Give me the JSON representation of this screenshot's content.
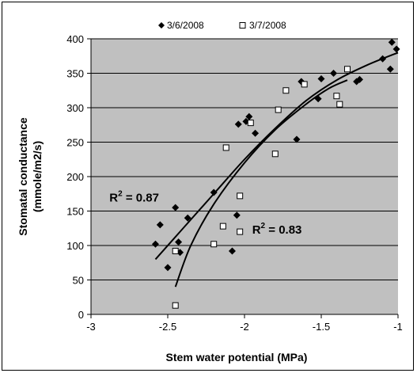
{
  "chart_data": {
    "type": "scatter",
    "xlabel": "Stem water potential (MPa)",
    "ylabel": "Stomatal conductance (mmole/m2/s)",
    "ylabel_lines": [
      "Stomatal conductance",
      "(mmole/m2/s)"
    ],
    "xlim": [
      -3,
      -1
    ],
    "ylim": [
      0,
      400
    ],
    "xticks": [
      "-3",
      "-2.5",
      "-2",
      "-1.5",
      "-1"
    ],
    "yticks": [
      "0",
      "50",
      "100",
      "150",
      "200",
      "250",
      "300",
      "350",
      "400"
    ],
    "grid": "horizontal",
    "plot_background": "#c0c0c0",
    "legend_position": "top",
    "series": [
      {
        "name": "3/6/2008",
        "marker": "diamond-filled",
        "color": "#000000",
        "points": [
          [
            -2.58,
            102
          ],
          [
            -2.55,
            130
          ],
          [
            -2.5,
            68
          ],
          [
            -2.45,
            155
          ],
          [
            -2.43,
            105
          ],
          [
            -2.42,
            90
          ],
          [
            -2.37,
            140
          ],
          [
            -2.2,
            177
          ],
          [
            -2.08,
            92
          ],
          [
            -2.05,
            144
          ],
          [
            -2.04,
            276
          ],
          [
            -1.99,
            280
          ],
          [
            -1.97,
            287
          ],
          [
            -1.93,
            263
          ],
          [
            -1.66,
            254
          ],
          [
            -1.63,
            338
          ],
          [
            -1.52,
            313
          ],
          [
            -1.5,
            342
          ],
          [
            -1.42,
            350
          ],
          [
            -1.27,
            338
          ],
          [
            -1.25,
            341
          ],
          [
            -1.1,
            371
          ],
          [
            -1.05,
            356
          ],
          [
            -1.04,
            395
          ],
          [
            -1.01,
            385
          ]
        ]
      },
      {
        "name": "3/7/2008",
        "marker": "square-open",
        "color": "#000000",
        "points": [
          [
            -2.45,
            13
          ],
          [
            -2.45,
            92
          ],
          [
            -2.2,
            102
          ],
          [
            -2.14,
            128
          ],
          [
            -2.12,
            242
          ],
          [
            -2.03,
            172
          ],
          [
            -2.03,
            120
          ],
          [
            -1.96,
            278
          ],
          [
            -1.8,
            233
          ],
          [
            -1.78,
            297
          ],
          [
            -1.73,
            325
          ],
          [
            -1.61,
            334
          ],
          [
            -1.4,
            317
          ],
          [
            -1.38,
            305
          ],
          [
            -1.33,
            356
          ]
        ]
      }
    ],
    "trendlines": [
      {
        "series": "3/6/2008",
        "type": "log-fit",
        "points": [
          [
            -2.58,
            80
          ],
          [
            -2.4,
            125
          ],
          [
            -2.2,
            175
          ],
          [
            -2.0,
            225
          ],
          [
            -1.8,
            270
          ],
          [
            -1.6,
            310
          ],
          [
            -1.4,
            340
          ],
          [
            -1.2,
            362
          ],
          [
            -1.0,
            380
          ]
        ]
      },
      {
        "series": "3/7/2008",
        "type": "log-fit",
        "points": [
          [
            -2.45,
            40
          ],
          [
            -2.35,
            100
          ],
          [
            -2.2,
            160
          ],
          [
            -2.0,
            220
          ],
          [
            -1.8,
            268
          ],
          [
            -1.6,
            305
          ],
          [
            -1.45,
            328
          ],
          [
            -1.33,
            340
          ]
        ]
      }
    ],
    "annotations": [
      {
        "id": "r2-diamond",
        "text": "R² = 0.87",
        "base": "R",
        "sup": "2",
        "rest": " = 0.87",
        "x": -2.88,
        "y": 164
      },
      {
        "id": "r2-square",
        "text": "R² = 0.83",
        "base": "R",
        "sup": "2",
        "rest": " = 0.83",
        "x": -1.95,
        "y": 117
      }
    ]
  }
}
